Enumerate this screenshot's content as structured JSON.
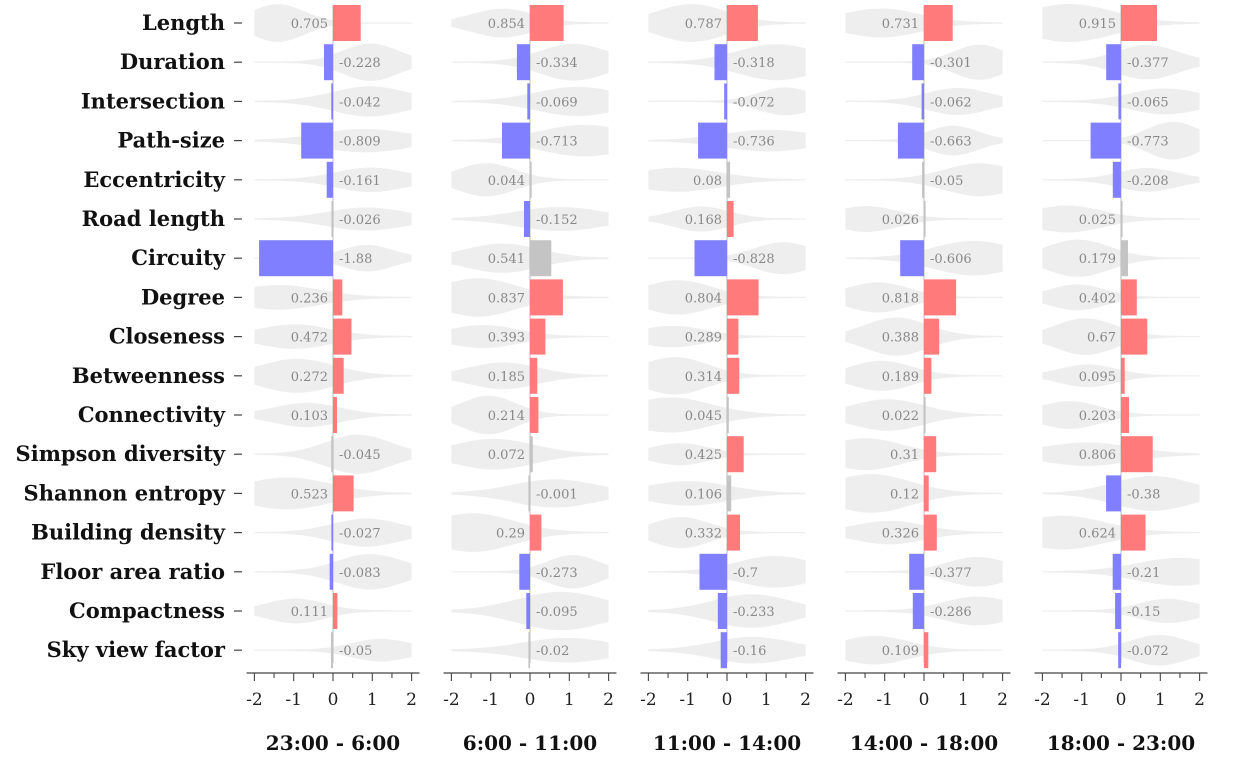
{
  "chart_data": {
    "type": "bar",
    "features": [
      "Length",
      "Duration",
      "Intersection",
      "Path-size",
      "Eccentricity",
      "Road length",
      "Circuity",
      "Degree",
      "Closeness",
      "Betweenness",
      "Connectivity",
      "Simpson diversity",
      "Shannon entropy",
      "Building density",
      "Floor area ratio",
      "Compactness",
      "Sky view factor"
    ],
    "xlim": [
      -2,
      2
    ],
    "xticks": [
      "-2",
      "-1",
      "0",
      "1",
      "2"
    ],
    "colors": {
      "positive": "#ff7a7a",
      "negative": "#7f7fff",
      "neutral": "#c4c4c4",
      "violin": "#eeeeee",
      "axis": "#444444"
    },
    "panels": [
      {
        "title": "23:00 - 6:00",
        "values": [
          0.705,
          -0.228,
          -0.042,
          -0.809,
          -0.161,
          -0.026,
          -1.88,
          0.236,
          0.472,
          0.272,
          0.103,
          -0.045,
          0.523,
          -0.027,
          -0.083,
          0.111,
          -0.05
        ],
        "labels": [
          "0.705",
          "-0.228",
          "-0.042",
          "-0.809",
          "-0.161",
          "-0.026",
          "-1.88",
          "0.236",
          "0.472",
          "0.272",
          "0.103",
          "-0.045",
          "0.523",
          "-0.027",
          "-0.083",
          "0.111",
          "-0.05"
        ],
        "significant": [
          true,
          true,
          true,
          true,
          true,
          false,
          true,
          true,
          true,
          true,
          true,
          false,
          true,
          true,
          true,
          true,
          false
        ]
      },
      {
        "title": "6:00 - 11:00",
        "values": [
          0.854,
          -0.334,
          -0.069,
          -0.713,
          0.044,
          -0.152,
          0.541,
          0.837,
          0.393,
          0.185,
          0.214,
          0.072,
          -0.001,
          0.29,
          -0.273,
          -0.095,
          -0.02
        ],
        "labels": [
          "0.854",
          "-0.334",
          "-0.069",
          "-0.713",
          "0.044",
          "-0.152",
          "0.541",
          "0.837",
          "0.393",
          "0.185",
          "0.214",
          "0.072",
          "-0.001",
          "0.29",
          "-0.273",
          "-0.095",
          "-0.02"
        ],
        "significant": [
          true,
          true,
          true,
          true,
          false,
          true,
          false,
          true,
          true,
          true,
          true,
          false,
          false,
          true,
          true,
          true,
          false
        ]
      },
      {
        "title": "11:00 - 14:00",
        "values": [
          0.787,
          -0.318,
          -0.072,
          -0.736,
          0.08,
          0.168,
          -0.828,
          0.804,
          0.289,
          0.314,
          0.045,
          0.425,
          0.106,
          0.332,
          -0.7,
          -0.233,
          -0.16
        ],
        "labels": [
          "0.787",
          "-0.318",
          "-0.072",
          "-0.736",
          "0.08",
          "0.168",
          "-0.828",
          "0.804",
          "0.289",
          "0.314",
          "0.045",
          "0.425",
          "0.106",
          "0.332",
          "-0.7",
          "-0.233",
          "-0.16"
        ],
        "significant": [
          true,
          true,
          true,
          true,
          false,
          true,
          true,
          true,
          true,
          true,
          false,
          true,
          false,
          true,
          true,
          true,
          true
        ]
      },
      {
        "title": "14:00 - 18:00",
        "values": [
          0.731,
          -0.301,
          -0.062,
          -0.663,
          -0.05,
          0.026,
          -0.606,
          0.818,
          0.388,
          0.189,
          0.022,
          0.31,
          0.12,
          0.326,
          -0.377,
          -0.286,
          0.109
        ],
        "labels": [
          "0.731",
          "-0.301",
          "-0.062",
          "-0.663",
          "-0.05",
          "0.026",
          "-0.606",
          "0.818",
          "0.388",
          "0.189",
          "0.022",
          "0.31",
          "0.12",
          "0.326",
          "-0.377",
          "-0.286",
          "0.109"
        ],
        "significant": [
          true,
          true,
          true,
          true,
          false,
          false,
          true,
          true,
          true,
          true,
          false,
          true,
          true,
          true,
          true,
          true,
          true
        ]
      },
      {
        "title": "18:00 - 23:00",
        "values": [
          0.915,
          -0.377,
          -0.065,
          -0.773,
          -0.208,
          0.025,
          0.179,
          0.402,
          0.67,
          0.095,
          0.203,
          0.806,
          -0.38,
          0.624,
          -0.21,
          -0.15,
          -0.072
        ],
        "labels": [
          "0.915",
          "-0.377",
          "-0.065",
          "-0.773",
          "-0.208",
          "0.025",
          "0.179",
          "0.402",
          "0.67",
          "0.095",
          "0.203",
          "0.806",
          "-0.38",
          "0.624",
          "-0.21",
          "-0.15",
          "-0.072"
        ],
        "significant": [
          true,
          true,
          true,
          true,
          true,
          false,
          false,
          true,
          true,
          true,
          true,
          true,
          true,
          true,
          true,
          true,
          true
        ]
      }
    ]
  }
}
